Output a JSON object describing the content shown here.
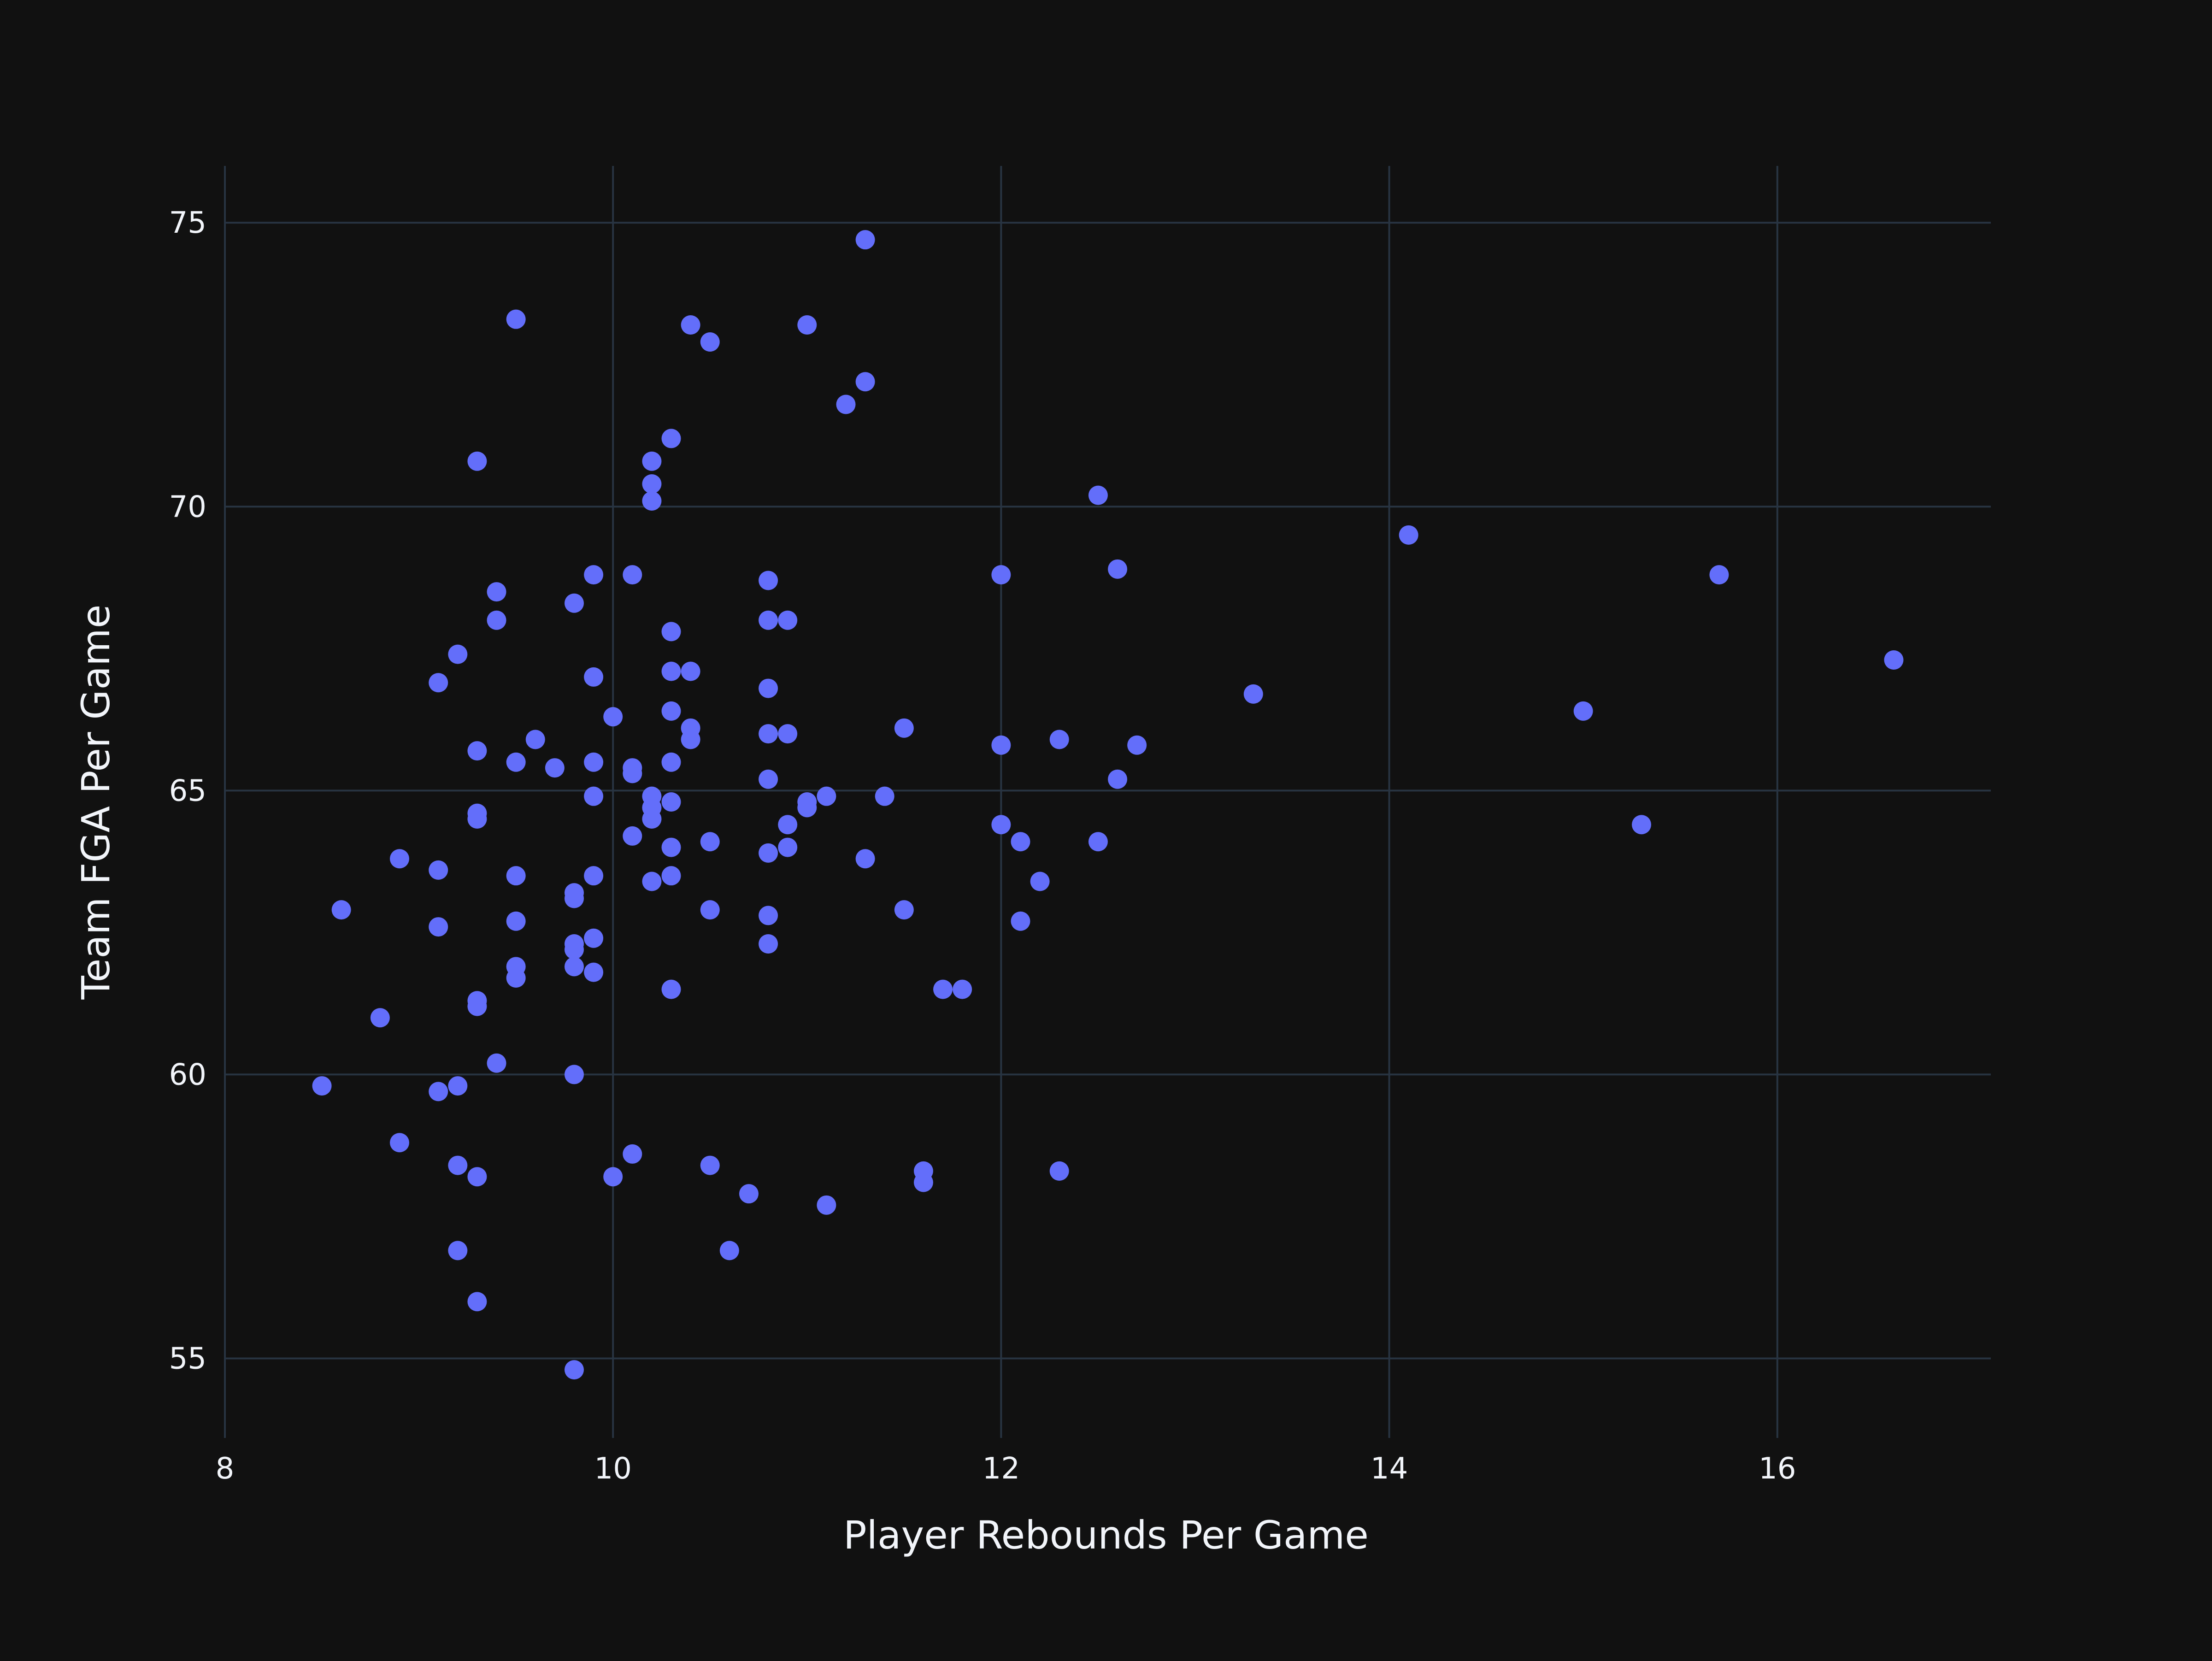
{
  "chart_data": {
    "type": "scatter",
    "title": "",
    "xlabel": "Player Rebounds Per Game",
    "ylabel": "Team FGA Per Game",
    "xlim": [
      8,
      17.1
    ],
    "ylim": [
      53.6,
      76
    ],
    "xticks": [
      8,
      10,
      12,
      14,
      16
    ],
    "yticks": [
      55,
      60,
      65,
      70,
      75
    ],
    "grid": true,
    "legend": "none",
    "colors": {
      "background": "#111111",
      "grid": "#283442",
      "marker": "#636efa",
      "text": "#f2f5fa"
    },
    "points": [
      [
        8.5,
        59.8
      ],
      [
        8.6,
        62.9
      ],
      [
        8.8,
        61.0
      ],
      [
        8.9,
        63.8
      ],
      [
        8.9,
        58.8
      ],
      [
        9.1,
        66.9
      ],
      [
        9.1,
        63.6
      ],
      [
        9.1,
        62.6
      ],
      [
        9.1,
        59.7
      ],
      [
        9.2,
        67.4
      ],
      [
        9.2,
        59.8
      ],
      [
        9.2,
        58.4
      ],
      [
        9.2,
        56.9
      ],
      [
        9.3,
        70.8
      ],
      [
        9.3,
        65.7
      ],
      [
        9.3,
        64.6
      ],
      [
        9.3,
        64.5
      ],
      [
        9.3,
        61.3
      ],
      [
        9.3,
        61.2
      ],
      [
        9.3,
        58.2
      ],
      [
        9.3,
        56.0
      ],
      [
        9.4,
        68.5
      ],
      [
        9.4,
        68.0
      ],
      [
        9.4,
        60.2
      ],
      [
        9.5,
        73.3
      ],
      [
        9.5,
        65.5
      ],
      [
        9.5,
        63.5
      ],
      [
        9.5,
        62.7
      ],
      [
        9.5,
        61.9
      ],
      [
        9.5,
        61.7
      ],
      [
        9.6,
        65.9
      ],
      [
        9.7,
        65.4
      ],
      [
        9.8,
        68.3
      ],
      [
        9.8,
        63.2
      ],
      [
        9.8,
        63.1
      ],
      [
        9.8,
        62.3
      ],
      [
        9.8,
        62.2
      ],
      [
        9.8,
        61.9
      ],
      [
        9.8,
        60.0
      ],
      [
        9.8,
        54.8
      ],
      [
        9.9,
        68.8
      ],
      [
        9.9,
        67.0
      ],
      [
        9.9,
        65.5
      ],
      [
        9.9,
        64.9
      ],
      [
        9.9,
        63.5
      ],
      [
        9.9,
        62.4
      ],
      [
        9.9,
        61.8
      ],
      [
        10.0,
        66.3
      ],
      [
        10.0,
        58.2
      ],
      [
        10.1,
        68.8
      ],
      [
        10.1,
        65.4
      ],
      [
        10.1,
        65.3
      ],
      [
        10.1,
        64.2
      ],
      [
        10.1,
        58.6
      ],
      [
        10.2,
        70.8
      ],
      [
        10.2,
        70.4
      ],
      [
        10.2,
        70.1
      ],
      [
        10.2,
        64.9
      ],
      [
        10.2,
        64.7
      ],
      [
        10.2,
        64.5
      ],
      [
        10.2,
        63.4
      ],
      [
        10.3,
        71.2
      ],
      [
        10.3,
        67.8
      ],
      [
        10.3,
        67.1
      ],
      [
        10.3,
        66.4
      ],
      [
        10.3,
        65.5
      ],
      [
        10.3,
        64.8
      ],
      [
        10.3,
        64.0
      ],
      [
        10.3,
        63.5
      ],
      [
        10.3,
        61.5
      ],
      [
        10.4,
        73.2
      ],
      [
        10.4,
        67.1
      ],
      [
        10.4,
        66.1
      ],
      [
        10.4,
        65.9
      ],
      [
        10.5,
        72.9
      ],
      [
        10.5,
        64.1
      ],
      [
        10.5,
        62.9
      ],
      [
        10.5,
        58.4
      ],
      [
        10.6,
        56.9
      ],
      [
        10.7,
        57.9
      ],
      [
        10.8,
        68.7
      ],
      [
        10.8,
        68.0
      ],
      [
        10.8,
        66.8
      ],
      [
        10.8,
        66.0
      ],
      [
        10.8,
        65.2
      ],
      [
        10.8,
        63.9
      ],
      [
        10.8,
        62.8
      ],
      [
        10.8,
        62.3
      ],
      [
        10.9,
        68.0
      ],
      [
        10.9,
        66.0
      ],
      [
        10.9,
        64.4
      ],
      [
        10.9,
        64.0
      ],
      [
        11.0,
        73.2
      ],
      [
        11.0,
        64.8
      ],
      [
        11.0,
        64.7
      ],
      [
        11.1,
        64.9
      ],
      [
        11.1,
        57.7
      ],
      [
        11.2,
        71.8
      ],
      [
        11.3,
        74.7
      ],
      [
        11.3,
        72.2
      ],
      [
        11.3,
        63.8
      ],
      [
        11.4,
        64.9
      ],
      [
        11.5,
        66.1
      ],
      [
        11.5,
        62.9
      ],
      [
        11.6,
        58.3
      ],
      [
        11.6,
        58.1
      ],
      [
        11.7,
        61.5
      ],
      [
        11.8,
        61.5
      ],
      [
        12.0,
        68.8
      ],
      [
        12.0,
        65.8
      ],
      [
        12.0,
        64.4
      ],
      [
        12.1,
        64.1
      ],
      [
        12.1,
        62.7
      ],
      [
        12.2,
        63.4
      ],
      [
        12.3,
        65.9
      ],
      [
        12.3,
        58.3
      ],
      [
        12.5,
        70.2
      ],
      [
        12.5,
        64.1
      ],
      [
        12.6,
        68.9
      ],
      [
        12.6,
        65.2
      ],
      [
        12.7,
        65.8
      ],
      [
        13.3,
        66.7
      ],
      [
        14.1,
        69.5
      ],
      [
        15.0,
        66.4
      ],
      [
        15.3,
        64.4
      ],
      [
        15.7,
        68.8
      ],
      [
        16.6,
        67.3
      ]
    ]
  }
}
